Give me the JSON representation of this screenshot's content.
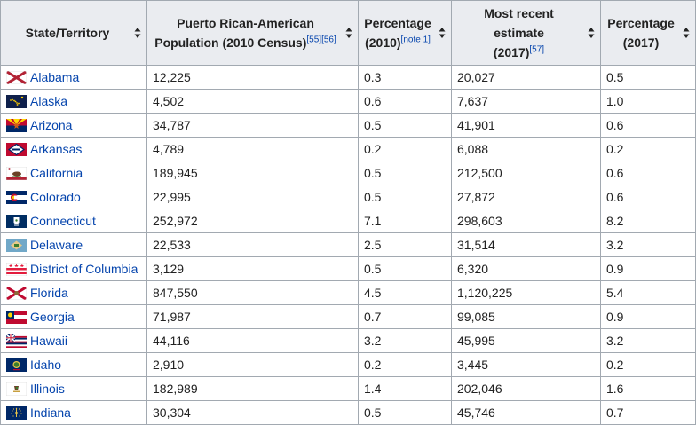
{
  "headers": {
    "state": "State/Territory",
    "population_2010_line1": "Puerto Rican-American",
    "population_2010_line2": "Population (2010 Census)",
    "population_2010_refs": "[55][56]",
    "pct_2010_line1": "Percentage",
    "pct_2010_line2": "(2010)",
    "pct_2010_ref": "[note 1]",
    "estimate_2017_line1": "Most recent estimate",
    "estimate_2017_line2": "(2017)",
    "estimate_2017_ref": "[57]",
    "pct_2017_line1": "Percentage",
    "pct_2017_line2": "(2017)"
  },
  "rows": [
    {
      "state": "Alabama",
      "flag_icon": "alabama-flag-icon",
      "pop2010": "12,225",
      "pct2010": "0.3",
      "est2017": "20,027",
      "pct2017": "0.5"
    },
    {
      "state": "Alaska",
      "flag_icon": "alaska-flag-icon",
      "pop2010": "4,502",
      "pct2010": "0.6",
      "est2017": "7,637",
      "pct2017": "1.0"
    },
    {
      "state": "Arizona",
      "flag_icon": "arizona-flag-icon",
      "pop2010": "34,787",
      "pct2010": "0.5",
      "est2017": "41,901",
      "pct2017": "0.6"
    },
    {
      "state": "Arkansas",
      "flag_icon": "arkansas-flag-icon",
      "pop2010": "4,789",
      "pct2010": "0.2",
      "est2017": "6,088",
      "pct2017": "0.2"
    },
    {
      "state": "California",
      "flag_icon": "california-flag-icon",
      "pop2010": "189,945",
      "pct2010": "0.5",
      "est2017": "212,500",
      "pct2017": "0.6"
    },
    {
      "state": "Colorado",
      "flag_icon": "colorado-flag-icon",
      "pop2010": "22,995",
      "pct2010": "0.5",
      "est2017": "27,872",
      "pct2017": "0.6"
    },
    {
      "state": "Connecticut",
      "flag_icon": "connecticut-flag-icon",
      "pop2010": "252,972",
      "pct2010": "7.1",
      "est2017": "298,603",
      "pct2017": "8.2"
    },
    {
      "state": "Delaware",
      "flag_icon": "delaware-flag-icon",
      "pop2010": "22,533",
      "pct2010": "2.5",
      "est2017": "31,514",
      "pct2017": "3.2"
    },
    {
      "state": "District of Columbia",
      "flag_icon": "dc-flag-icon",
      "pop2010": "3,129",
      "pct2010": "0.5",
      "est2017": "6,320",
      "pct2017": "0.9"
    },
    {
      "state": "Florida",
      "flag_icon": "florida-flag-icon",
      "pop2010": "847,550",
      "pct2010": "4.5",
      "est2017": "1,120,225",
      "pct2017": "5.4"
    },
    {
      "state": "Georgia",
      "flag_icon": "georgia-flag-icon",
      "pop2010": "71,987",
      "pct2010": "0.7",
      "est2017": "99,085",
      "pct2017": "0.9"
    },
    {
      "state": "Hawaii",
      "flag_icon": "hawaii-flag-icon",
      "pop2010": "44,116",
      "pct2010": "3.2",
      "est2017": "45,995",
      "pct2017": "3.2"
    },
    {
      "state": "Idaho",
      "flag_icon": "idaho-flag-icon",
      "pop2010": "2,910",
      "pct2010": "0.2",
      "est2017": "3,445",
      "pct2017": "0.2"
    },
    {
      "state": "Illinois",
      "flag_icon": "illinois-flag-icon",
      "pop2010": "182,989",
      "pct2010": "1.4",
      "est2017": "202,046",
      "pct2017": "1.6"
    },
    {
      "state": "Indiana",
      "flag_icon": "indiana-flag-icon",
      "pop2010": "30,304",
      "pct2010": "0.5",
      "est2017": "45,746",
      "pct2017": "0.7"
    }
  ],
  "colors": {
    "link": "#0645ad",
    "header_bg": "#eaecf0",
    "border": "#a2a9b1"
  }
}
